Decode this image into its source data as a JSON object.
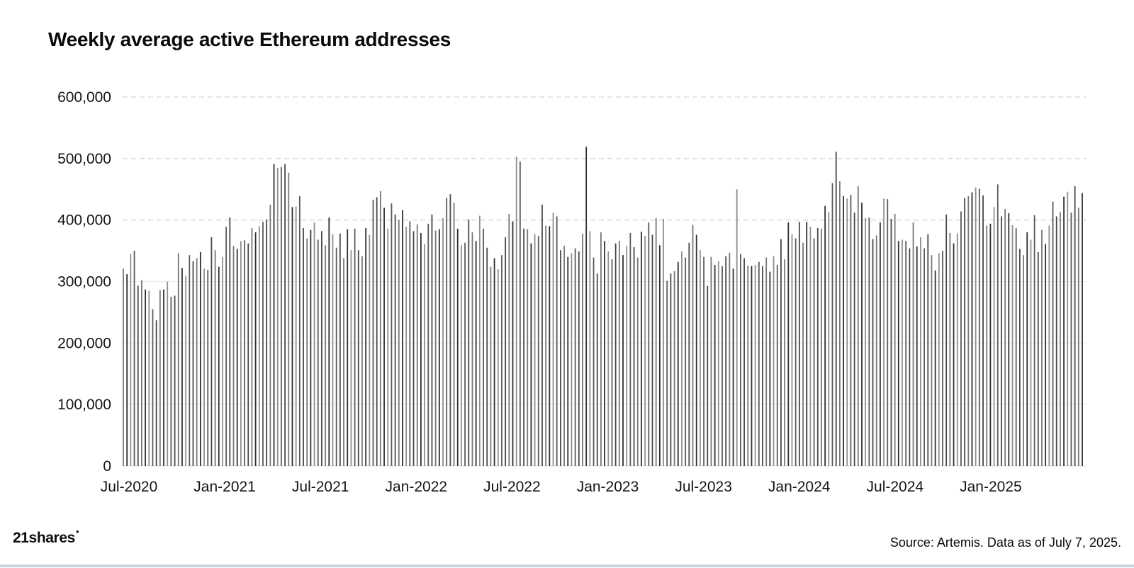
{
  "header": {
    "title": "Weekly average active Ethereum addresses"
  },
  "footer": {
    "logo_text": "21shares",
    "source": "Source: Artemis. Data as of July 7, 2025."
  },
  "colors": {
    "bar_dark": "#303030",
    "bar_mid": "#5a5a5a",
    "bar_light": "#8f8f8f",
    "grid_dashed": "#d6d6d6",
    "grid_solid": "#ececec",
    "baseline": "#e3e3e3",
    "bottom_strip": "#ccd6e0",
    "text": "#141414"
  },
  "chart_data": {
    "type": "bar",
    "title": "Weekly average active Ethereum addresses",
    "xlabel": "",
    "ylabel": "",
    "x_unit": "week",
    "start_week": "2020-07-06",
    "end_week": "2025-07-07",
    "ylim": [
      0,
      600000
    ],
    "grid": "horizontal, dashed above 300k, faint solid below",
    "legend": "none",
    "x_tick_labels": [
      "Jul-2020",
      "Jan-2021",
      "Jul-2021",
      "Jan-2022",
      "Jul-2022",
      "Jan-2023",
      "Jul-2023",
      "Jan-2024",
      "Jul-2024",
      "Jan-2025"
    ],
    "y_tick_labels": [
      "0",
      "100,000",
      "200,000",
      "300,000",
      "400,000",
      "500,000",
      "600,000"
    ],
    "values_unit": "active addresses (weekly average)",
    "values": [
      321000,
      312000,
      345000,
      350000,
      293000,
      302000,
      287000,
      285000,
      255000,
      237000,
      286000,
      287000,
      300000,
      275000,
      277000,
      346000,
      322000,
      309000,
      343000,
      333000,
      338000,
      348000,
      321000,
      319000,
      372000,
      351000,
      324000,
      340000,
      389000,
      404000,
      358000,
      353000,
      366000,
      367000,
      362000,
      387000,
      380000,
      390000,
      397000,
      401000,
      425000,
      491000,
      485000,
      486000,
      491000,
      477000,
      421000,
      422000,
      439000,
      387000,
      370000,
      384000,
      396000,
      368000,
      382000,
      359000,
      404000,
      377000,
      355000,
      378000,
      338000,
      385000,
      351000,
      386000,
      351000,
      341000,
      387000,
      376000,
      433000,
      437000,
      447000,
      420000,
      386000,
      427000,
      409000,
      400000,
      416000,
      389000,
      398000,
      382000,
      393000,
      379000,
      361000,
      394000,
      409000,
      383000,
      385000,
      403000,
      436000,
      442000,
      428000,
      386000,
      359000,
      363000,
      401000,
      380000,
      366000,
      407000,
      386000,
      355000,
      324000,
      338000,
      320000,
      343000,
      372000,
      410000,
      398000,
      503000,
      495000,
      386000,
      385000,
      362000,
      377000,
      374000,
      425000,
      391000,
      390000,
      412000,
      406000,
      351000,
      358000,
      340000,
      346000,
      354000,
      349000,
      378000,
      519000,
      382000,
      339000,
      313000,
      380000,
      366000,
      349000,
      336000,
      362000,
      366000,
      343000,
      358000,
      379000,
      356000,
      339000,
      381000,
      374000,
      396000,
      376000,
      403000,
      359000,
      402000,
      301000,
      313000,
      317000,
      332000,
      349000,
      339000,
      363000,
      392000,
      376000,
      351000,
      340000,
      293000,
      340000,
      327000,
      333000,
      325000,
      341000,
      347000,
      321000,
      450000,
      345000,
      338000,
      326000,
      325000,
      327000,
      332000,
      325000,
      339000,
      316000,
      341000,
      327000,
      369000,
      336000,
      396000,
      377000,
      370000,
      397000,
      363000,
      397000,
      389000,
      370000,
      387000,
      386000,
      423000,
      413000,
      460000,
      511000,
      463000,
      439000,
      435000,
      441000,
      412000,
      455000,
      428000,
      403000,
      404000,
      369000,
      375000,
      396000,
      435000,
      434000,
      402000,
      410000,
      366000,
      368000,
      366000,
      354000,
      396000,
      357000,
      372000,
      354000,
      377000,
      343000,
      318000,
      346000,
      350000,
      409000,
      379000,
      362000,
      378000,
      414000,
      436000,
      439000,
      445000,
      453000,
      451000,
      440000,
      391000,
      394000,
      421000,
      458000,
      406000,
      418000,
      411000,
      392000,
      387000,
      353000,
      343000,
      380000,
      368000,
      408000,
      348000,
      384000,
      361000,
      391000,
      430000,
      406000,
      413000,
      438000,
      446000,
      412000,
      455000,
      420000,
      444000
    ]
  }
}
